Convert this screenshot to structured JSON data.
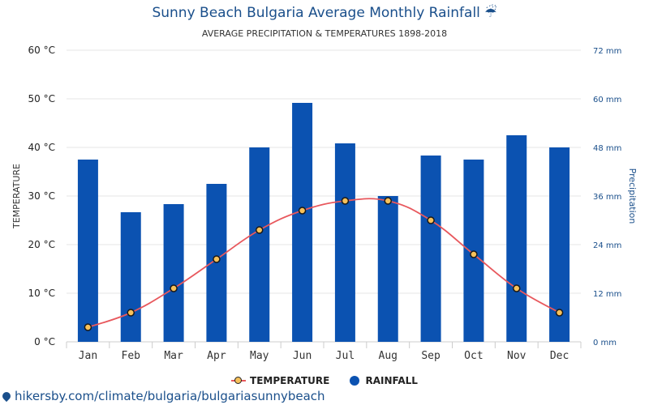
{
  "header": {
    "title": "Sunny Beach Bulgaria Average Monthly Rainfall ☔",
    "subtitle": "AVERAGE PRECIPITATION & TEMPERATURES 1898-2018"
  },
  "legend": {
    "temperature_label": "TEMPERATURE",
    "rainfall_label": "RAINFALL"
  },
  "footer": {
    "source_text": "hikersby.com/climate/bulgaria/bulgariasunnybeach"
  },
  "colors": {
    "bar": "#0b52b1",
    "line": "#e8585d",
    "marker_fill": "#f7c15a",
    "title": "#1a4f8b",
    "right_axis": "#1a4f8b"
  },
  "chart_data": {
    "type": "bar",
    "title": "Sunny Beach Bulgaria Average Monthly Rainfall",
    "categories": [
      "Jan",
      "Feb",
      "Mar",
      "Apr",
      "May",
      "Jun",
      "Jul",
      "Aug",
      "Sep",
      "Oct",
      "Nov",
      "Dec"
    ],
    "series": [
      {
        "name": "RAINFALL",
        "type": "bar",
        "axis": "right",
        "unit": "mm",
        "values": [
          45,
          32,
          34,
          39,
          48,
          59,
          49,
          36,
          46,
          45,
          51,
          48
        ]
      },
      {
        "name": "TEMPERATURE",
        "type": "line",
        "axis": "left",
        "unit": "°C",
        "values": [
          3,
          6,
          11,
          17,
          23,
          27,
          29,
          29,
          25,
          18,
          11,
          6
        ]
      }
    ],
    "y_left": {
      "label": "TEMPERATURE",
      "range": [
        0,
        60
      ],
      "ticks": [
        "0 °C",
        "10 °C",
        "20 °C",
        "30 °C",
        "40 °C",
        "50 °C",
        "60 °C"
      ]
    },
    "y_right": {
      "label": "Precipitation",
      "range": [
        0,
        72
      ],
      "ticks": [
        "0 mm",
        "12 mm",
        "24 mm",
        "36 mm",
        "48 mm",
        "60 mm",
        "72 mm"
      ]
    },
    "grid": true
  }
}
